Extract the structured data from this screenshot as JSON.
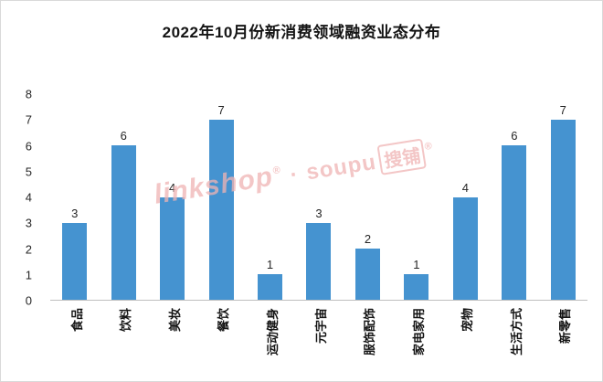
{
  "chart_data": {
    "type": "bar",
    "title": "2022年10月份新消费领域融资业态分布",
    "categories": [
      "食品",
      "饮料",
      "美妆",
      "餐饮",
      "运动健身",
      "元宇宙",
      "服饰配饰",
      "家电家用",
      "宠物",
      "生活方式",
      "新零售"
    ],
    "values": [
      3,
      6,
      4,
      7,
      1,
      3,
      2,
      1,
      4,
      6,
      7
    ],
    "xlabel": "",
    "ylabel": "",
    "ylim": [
      0,
      8
    ],
    "yticks": [
      0,
      1,
      2,
      3,
      4,
      5,
      6,
      7,
      8
    ],
    "grid": false,
    "legend": "none",
    "bar_color": "#4593d0",
    "data_labels": true
  },
  "watermark": {
    "brand1": "linkshop",
    "brand1_sup": "®",
    "separator": "·",
    "brand2_latin": "soupu",
    "brand2_cjk": "搜铺",
    "brand2_sup": "®",
    "color": "#f0b3b3"
  }
}
